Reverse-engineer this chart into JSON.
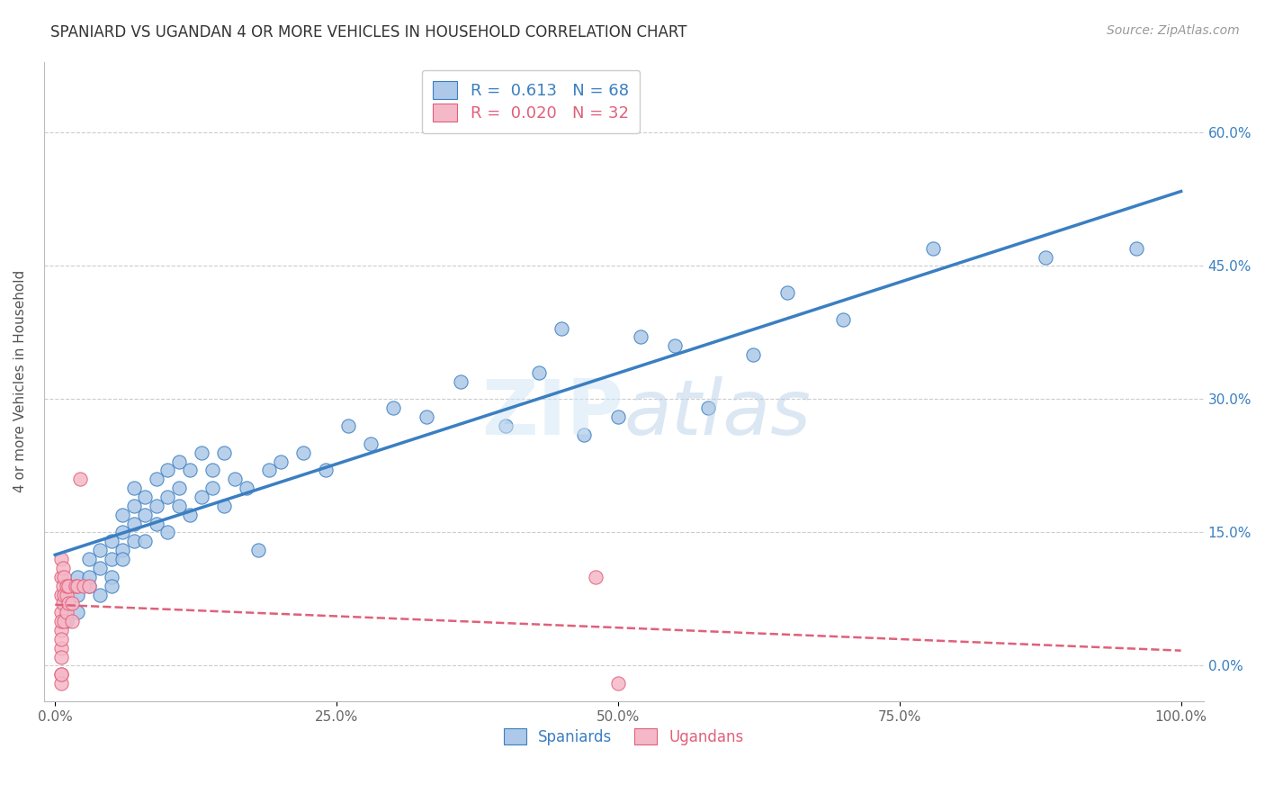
{
  "title": "SPANIARD VS UGANDAN 4 OR MORE VEHICLES IN HOUSEHOLD CORRELATION CHART",
  "source": "Source: ZipAtlas.com",
  "ylabel": "4 or more Vehicles in Household",
  "xlim": [
    -0.01,
    1.02
  ],
  "ylim": [
    -0.04,
    0.68
  ],
  "xticks": [
    0.0,
    0.25,
    0.5,
    0.75,
    1.0
  ],
  "xtick_labels": [
    "0.0%",
    "25.0%",
    "50.0%",
    "75.0%",
    "100.0%"
  ],
  "yticks": [
    0.0,
    0.15,
    0.3,
    0.45,
    0.6
  ],
  "ytick_labels": [
    "0.0%",
    "15.0%",
    "30.0%",
    "45.0%",
    "60.0%"
  ],
  "legend_R_spaniard": "0.613",
  "legend_N_spaniard": "68",
  "legend_R_ugandan": "0.020",
  "legend_N_ugandan": "32",
  "spaniard_color": "#adc8e8",
  "ugandan_color": "#f5b8c8",
  "spaniard_line_color": "#3a7fc1",
  "ugandan_line_color": "#e0607a",
  "watermark": "ZIPatlas",
  "spaniard_x": [
    0.01,
    0.02,
    0.02,
    0.02,
    0.03,
    0.03,
    0.03,
    0.04,
    0.04,
    0.04,
    0.05,
    0.05,
    0.05,
    0.05,
    0.06,
    0.06,
    0.06,
    0.06,
    0.07,
    0.07,
    0.07,
    0.07,
    0.08,
    0.08,
    0.08,
    0.09,
    0.09,
    0.09,
    0.1,
    0.1,
    0.1,
    0.11,
    0.11,
    0.11,
    0.12,
    0.12,
    0.13,
    0.13,
    0.14,
    0.14,
    0.15,
    0.15,
    0.16,
    0.17,
    0.18,
    0.19,
    0.2,
    0.22,
    0.24,
    0.26,
    0.28,
    0.3,
    0.33,
    0.36,
    0.4,
    0.43,
    0.45,
    0.47,
    0.5,
    0.52,
    0.55,
    0.58,
    0.62,
    0.65,
    0.7,
    0.78,
    0.88,
    0.96
  ],
  "spaniard_y": [
    0.05,
    0.08,
    0.1,
    0.06,
    0.09,
    0.1,
    0.12,
    0.08,
    0.11,
    0.13,
    0.1,
    0.12,
    0.14,
    0.09,
    0.13,
    0.15,
    0.12,
    0.17,
    0.14,
    0.16,
    0.18,
    0.2,
    0.14,
    0.17,
    0.19,
    0.16,
    0.18,
    0.21,
    0.15,
    0.19,
    0.22,
    0.18,
    0.2,
    0.23,
    0.17,
    0.22,
    0.19,
    0.24,
    0.2,
    0.22,
    0.18,
    0.24,
    0.21,
    0.2,
    0.13,
    0.22,
    0.23,
    0.24,
    0.22,
    0.27,
    0.25,
    0.29,
    0.28,
    0.32,
    0.27,
    0.33,
    0.38,
    0.26,
    0.28,
    0.37,
    0.36,
    0.29,
    0.35,
    0.42,
    0.39,
    0.47,
    0.46,
    0.47
  ],
  "ugandan_x": [
    0.005,
    0.005,
    0.005,
    0.005,
    0.005,
    0.005,
    0.005,
    0.005,
    0.005,
    0.005,
    0.005,
    0.005,
    0.007,
    0.007,
    0.007,
    0.008,
    0.008,
    0.008,
    0.01,
    0.01,
    0.01,
    0.012,
    0.012,
    0.015,
    0.015,
    0.018,
    0.02,
    0.022,
    0.025,
    0.03,
    0.48,
    0.5
  ],
  "ugandan_y": [
    0.04,
    0.06,
    0.08,
    0.1,
    0.12,
    0.02,
    0.01,
    -0.01,
    -0.02,
    -0.01,
    0.03,
    0.05,
    0.07,
    0.09,
    0.11,
    0.05,
    0.08,
    0.1,
    0.08,
    0.06,
    0.09,
    0.07,
    0.09,
    0.07,
    0.05,
    0.09,
    0.09,
    0.21,
    0.09,
    0.09,
    0.1,
    -0.02
  ]
}
